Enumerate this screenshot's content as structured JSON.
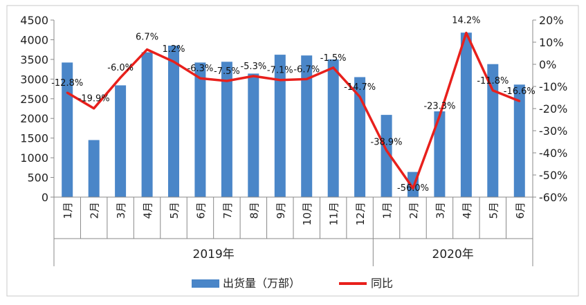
{
  "chart_data": {
    "type": "bar",
    "categories": [
      "1月",
      "2月",
      "3月",
      "4月",
      "5月",
      "6月",
      "7月",
      "8月",
      "9月",
      "10月",
      "11月",
      "12月",
      "1月",
      "2月",
      "3月",
      "4月",
      "5月",
      "6月"
    ],
    "year_groups": [
      {
        "label": "2019年",
        "start": 0,
        "end": 11
      },
      {
        "label": "2020年",
        "start": 12,
        "end": 17
      }
    ],
    "series": [
      {
        "name": "出货量（万部）",
        "type": "bar",
        "axis": "left",
        "color": "#4a86c8",
        "values": [
          3420,
          1450,
          2840,
          3680,
          3850,
          3420,
          3440,
          3140,
          3620,
          3600,
          3500,
          3050,
          2090,
          640,
          2180,
          4180,
          3380,
          2860
        ]
      },
      {
        "name": "同比",
        "type": "line",
        "axis": "right",
        "color": "#e8201c",
        "values": [
          -12.8,
          -19.9,
          -6.0,
          6.7,
          1.2,
          -6.3,
          -7.5,
          -5.3,
          -7.1,
          -6.7,
          -1.5,
          -14.7,
          -38.9,
          -56.0,
          -23.3,
          14.2,
          -11.8,
          -16.6
        ]
      }
    ],
    "line_labels": [
      "-12.8%",
      "-19.9%",
      "-6.0%",
      "6.7%",
      "1.2%",
      "-6.3%",
      "-7.5%",
      "-5.3%",
      "-7.1%",
      "-6.7%",
      "-1.5%",
      "-14.7%",
      "-38.9%",
      "-56.0%",
      "-23.3%",
      "14.2%",
      "-11.8%",
      "-16.6%"
    ],
    "y_left": {
      "min": 0,
      "max": 4500,
      "ticks": [
        "0",
        "500",
        "1000",
        "1500",
        "2000",
        "2500",
        "3000",
        "3500",
        "4000",
        "4500"
      ]
    },
    "y_right": {
      "min": -60,
      "max": 20,
      "ticks": [
        "-60%",
        "-50%",
        "-40%",
        "-30%",
        "-20%",
        "-10%",
        "0%",
        "10%",
        "20%"
      ]
    },
    "legend_position": "bottom",
    "grid": false
  }
}
